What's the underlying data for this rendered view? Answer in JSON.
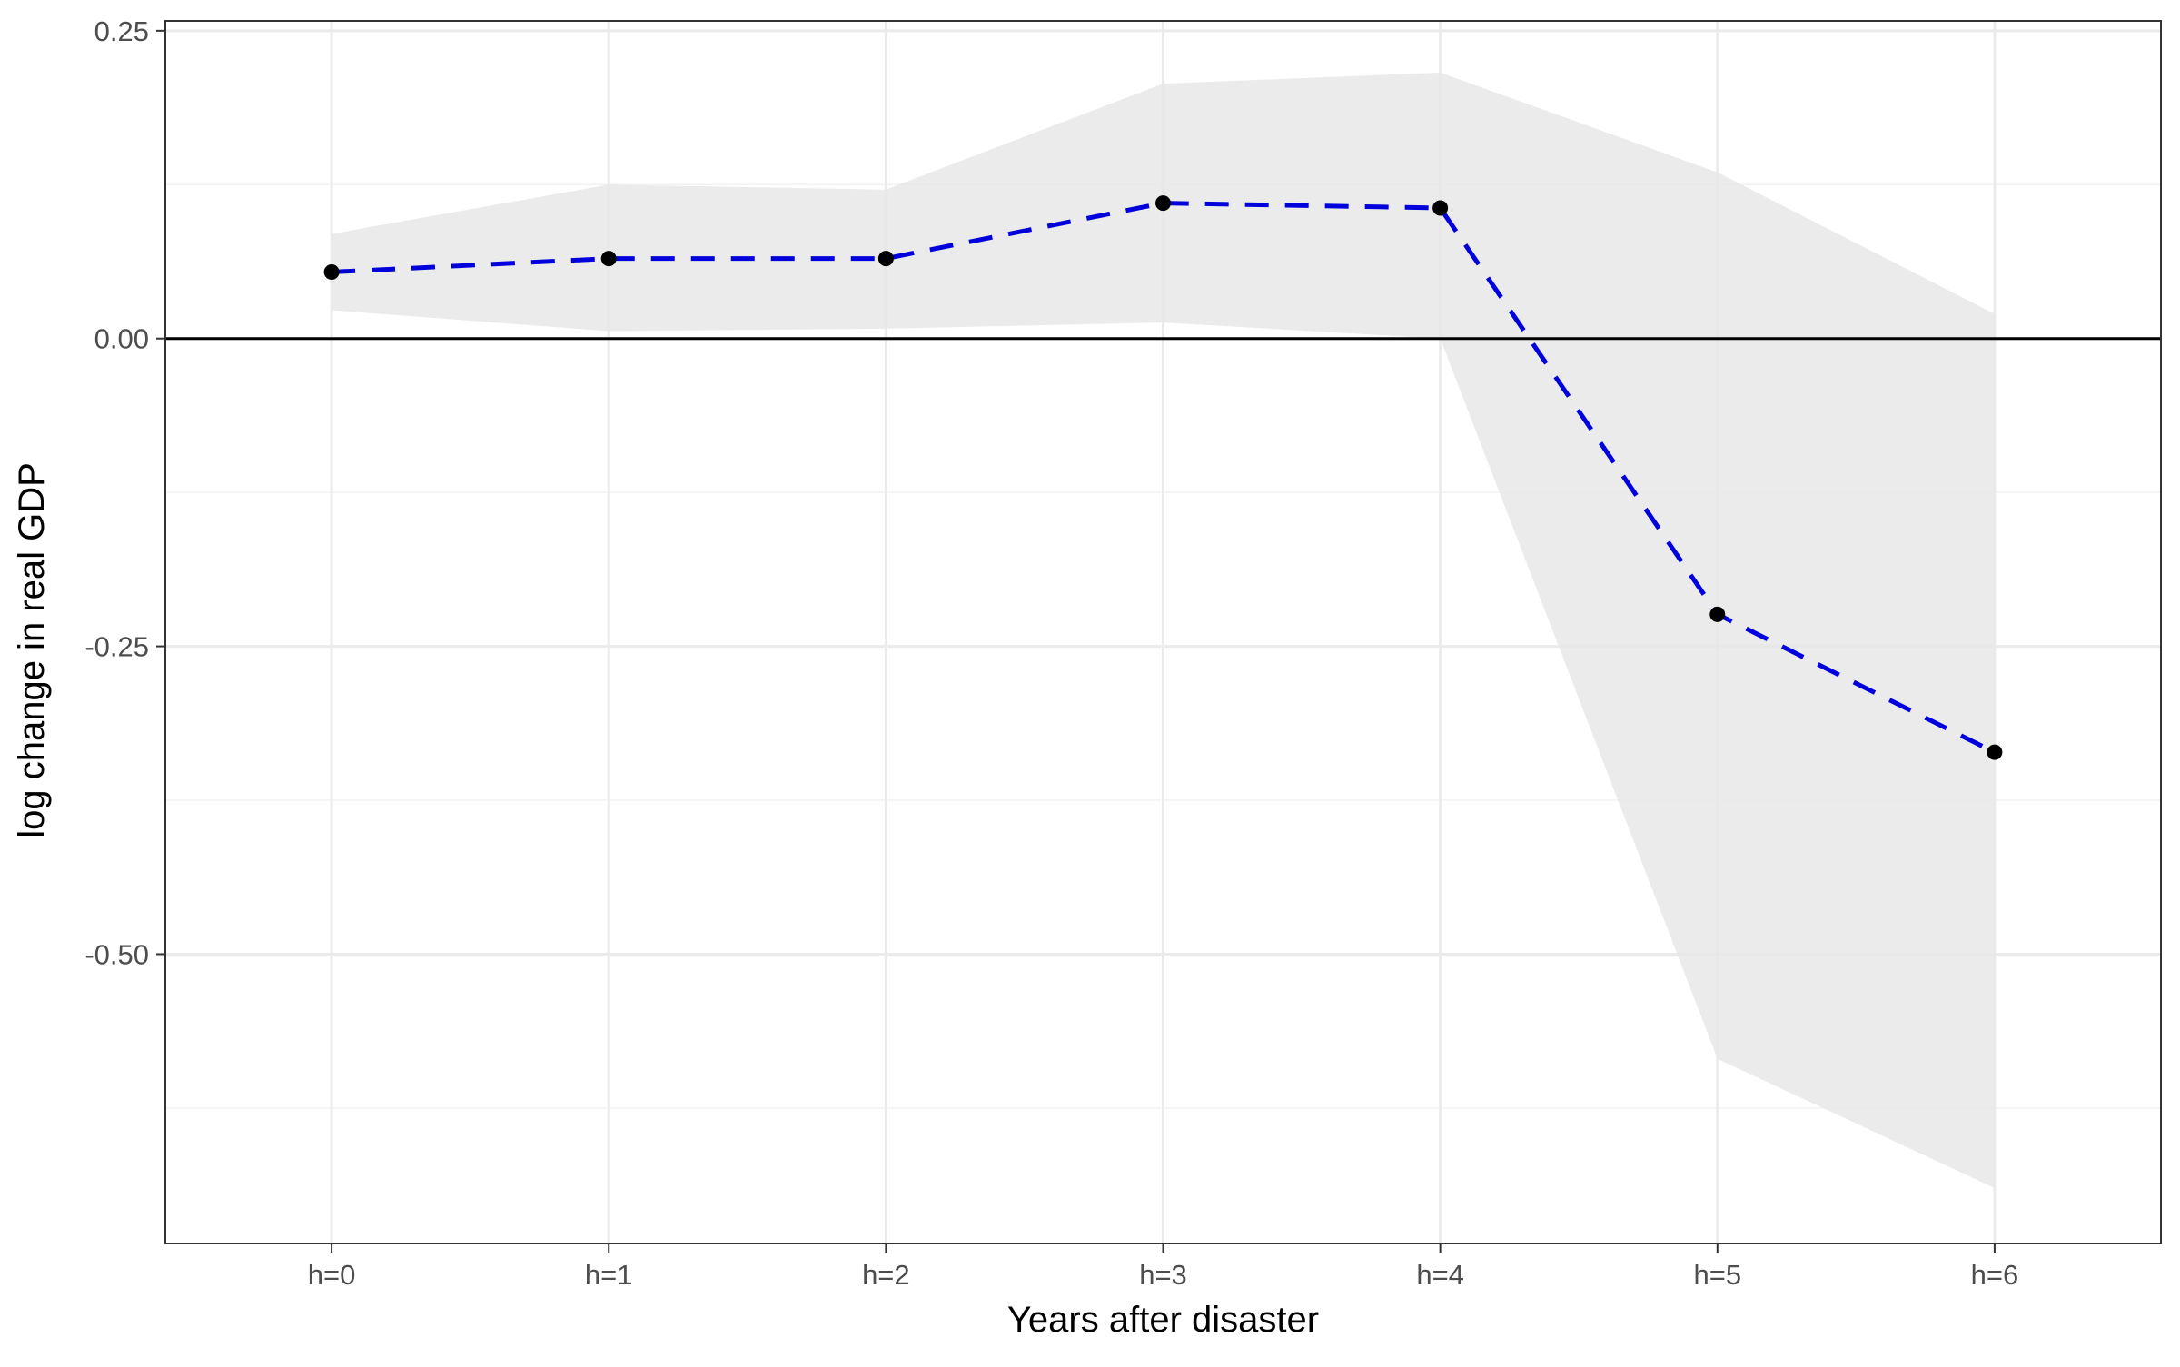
{
  "chart_data": {
    "type": "line",
    "title": "",
    "xlabel": "Years after disaster",
    "ylabel": "log change in real GDP",
    "categories": [
      "h=0",
      "h=1",
      "h=2",
      "h=3",
      "h=4",
      "h=5",
      "h=6"
    ],
    "series": [
      {
        "values": [
          0.054,
          0.065,
          0.065,
          0.11,
          0.106,
          -0.224,
          -0.336
        ],
        "ci_lower": [
          0.023,
          0.006,
          0.008,
          0.013,
          0.0,
          -0.585,
          -0.69
        ],
        "ci_upper": [
          0.085,
          0.125,
          0.121,
          0.207,
          0.216,
          0.135,
          0.02
        ]
      }
    ],
    "ylim": [
      -0.735,
      0.258
    ],
    "y_ticks": [
      0.25,
      0.0,
      -0.25,
      -0.5
    ],
    "y_tick_labels": [
      "0.25",
      "0.00",
      "-0.25",
      "-0.50"
    ],
    "y_minor_ticks": [
      0.125,
      -0.125,
      -0.375,
      -0.625
    ],
    "reference_line": 0,
    "grid": true,
    "legend": "none",
    "colors": {
      "line": "#0000dd",
      "point": "#000000",
      "ribbon": "#e6e6e6",
      "grid_major": "#ebebeb",
      "grid_minor": "#f2f2f2",
      "reference": "#000000",
      "panel_border": "#333333"
    }
  }
}
